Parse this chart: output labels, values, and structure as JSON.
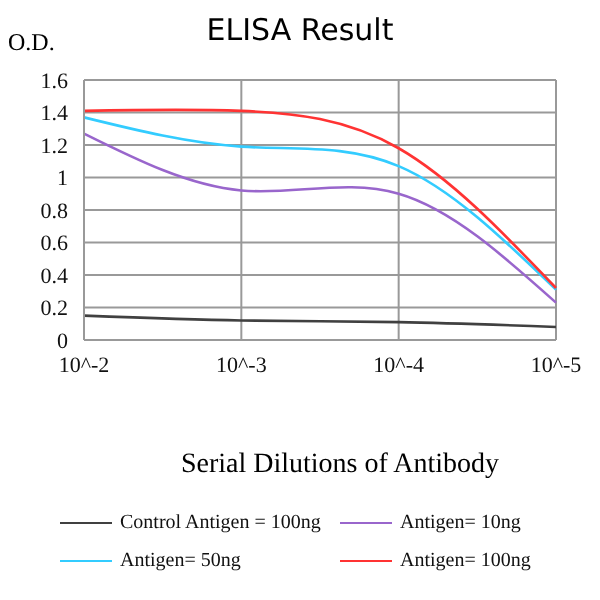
{
  "chart_data": {
    "type": "line",
    "title": "ELISA Result",
    "ylabel": "O.D.",
    "xlabel": "Serial Dilutions of Antibody",
    "categories": [
      "10^-2",
      "10^-3",
      "10^-4",
      "10^-5"
    ],
    "series": [
      {
        "name": "Control Antigen = 100ng",
        "color": "#404040",
        "values": [
          0.15,
          0.12,
          0.11,
          0.08
        ]
      },
      {
        "name": "Antigen= 10ng",
        "color": "#9966cc",
        "values": [
          1.27,
          0.92,
          0.9,
          0.23
        ]
      },
      {
        "name": "Antigen= 50ng",
        "color": "#33ccff",
        "values": [
          1.37,
          1.19,
          1.07,
          0.31
        ]
      },
      {
        "name": "Antigen= 100ng",
        "color": "#ff3333",
        "values": [
          1.41,
          1.41,
          1.18,
          0.32
        ]
      }
    ],
    "ylim": [
      0,
      1.6
    ],
    "yticks": [
      0,
      0.2,
      0.4,
      0.6,
      0.8,
      1,
      1.2,
      1.4,
      1.6
    ],
    "grid": true,
    "legend": "bottom",
    "marker": "none",
    "line_style": "solid"
  }
}
